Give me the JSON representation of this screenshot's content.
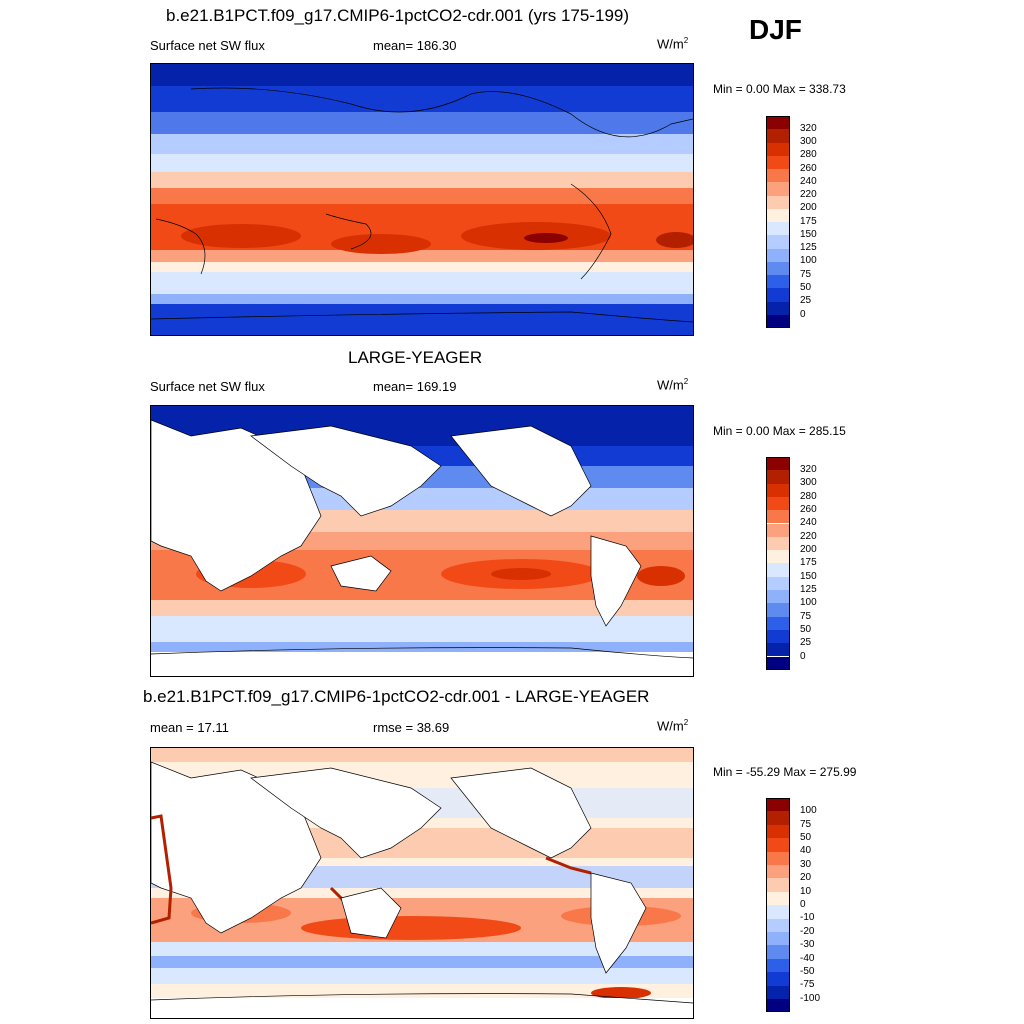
{
  "season": "DJF",
  "panels": [
    {
      "title": "b.e21.B1PCT.f09_g17.CMIP6-1pctCO2-cdr.001 (yrs 175-199)",
      "left_label": "Surface net SW flux",
      "center_label": "mean= 186.30",
      "units": "W/m",
      "units_exp": "2",
      "minmax": "Min =   0.00 Max = 338.73",
      "colorbar_labels": [
        "320",
        "300",
        "280",
        "260",
        "240",
        "220",
        "200",
        "175",
        "150",
        "125",
        "100",
        "75",
        "50",
        "25",
        "0"
      ],
      "colors": [
        "#8b0000",
        "#b22000",
        "#d83000",
        "#f24a16",
        "#f8784a",
        "#fba17e",
        "#fdcbb0",
        "#fff0e0",
        "#d9e8ff",
        "#b4ccff",
        "#8fb1fb",
        "#5f8af0",
        "#2d5fe8",
        "#113bd3",
        "#0523aa",
        "#000080"
      ]
    },
    {
      "title": "LARGE-YEAGER",
      "left_label": "Surface net SW flux",
      "center_label": "mean= 169.19",
      "units": "W/m",
      "units_exp": "2",
      "minmax": "Min =   0.00 Max = 285.15",
      "colorbar_labels": [
        "320",
        "300",
        "280",
        "260",
        "240",
        "220",
        "200",
        "175",
        "150",
        "125",
        "100",
        "75",
        "50",
        "25",
        "0"
      ],
      "colors": [
        "#8b0000",
        "#b22000",
        "#d83000",
        "#f24a16",
        "#f8784a",
        "#fba17e",
        "#fdcbb0",
        "#fff0e0",
        "#d9e8ff",
        "#b4ccff",
        "#8fb1fb",
        "#5f8af0",
        "#2d5fe8",
        "#113bd3",
        "#0523aa",
        "#000080"
      ]
    },
    {
      "title": "b.e21.B1PCT.f09_g17.CMIP6-1pctCO2-cdr.001 - LARGE-YEAGER",
      "left_label": "mean =  17.11",
      "center_label": "rmse =  38.69",
      "units": "W/m",
      "units_exp": "2",
      "minmax": "Min = -55.29 Max = 275.99",
      "colorbar_labels": [
        "100",
        "75",
        "50",
        "40",
        "30",
        "20",
        "10",
        "0",
        "-10",
        "-20",
        "-30",
        "-40",
        "-50",
        "-75",
        "-100"
      ],
      "colors": [
        "#8b0000",
        "#b22000",
        "#d83000",
        "#f24a16",
        "#f8784a",
        "#fba17e",
        "#fdcbb0",
        "#fff0e0",
        "#d9e8ff",
        "#b4ccff",
        "#8fb1fb",
        "#5f8af0",
        "#2d5fe8",
        "#113bd3",
        "#0523aa",
        "#000080"
      ]
    }
  ],
  "chart_data": [
    {
      "type": "heatmap",
      "title": "b.e21.B1PCT.f09_g17.CMIP6-1pctCO2-cdr.001 (yrs 175-199)",
      "variable": "Surface net SW flux",
      "season": "DJF",
      "units": "W/m2",
      "mean": 186.3,
      "min": 0.0,
      "max": 338.73,
      "levels": [
        0,
        25,
        50,
        75,
        100,
        125,
        150,
        175,
        200,
        220,
        240,
        260,
        280,
        300,
        320
      ]
    },
    {
      "type": "heatmap",
      "title": "LARGE-YEAGER",
      "variable": "Surface net SW flux",
      "season": "DJF",
      "units": "W/m2",
      "mean": 169.19,
      "min": 0.0,
      "max": 285.15,
      "levels": [
        0,
        25,
        50,
        75,
        100,
        125,
        150,
        175,
        200,
        220,
        240,
        260,
        280,
        300,
        320
      ]
    },
    {
      "type": "heatmap",
      "title": "b.e21.B1PCT.f09_g17.CMIP6-1pctCO2-cdr.001 - LARGE-YEAGER",
      "season": "DJF",
      "units": "W/m2",
      "mean": 17.11,
      "rmse": 38.69,
      "min": -55.29,
      "max": 275.99,
      "levels": [
        -100,
        -75,
        -50,
        -40,
        -30,
        -20,
        -10,
        0,
        10,
        20,
        30,
        40,
        50,
        75,
        100
      ]
    }
  ]
}
